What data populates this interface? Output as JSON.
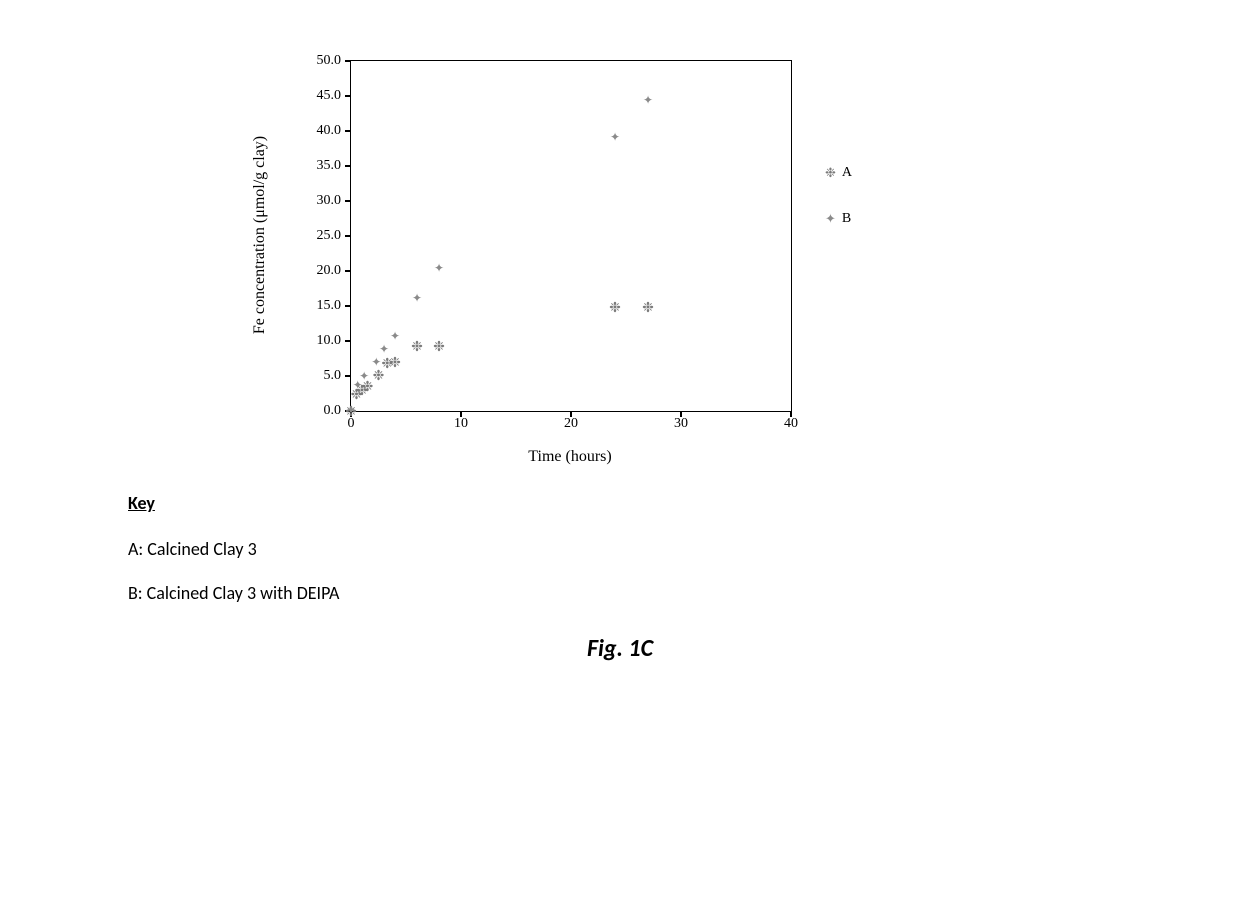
{
  "chart": {
    "type": "scatter",
    "xlabel": "Time (hours)",
    "ylabel": "Fe concentration (μmol/g clay)",
    "label_fontsize": 16,
    "tick_fontsize": 14,
    "xlim": [
      0,
      40
    ],
    "ylim": [
      0,
      50
    ],
    "xtick_step": 10,
    "ytick_step": 5,
    "xticks": [
      0,
      10,
      20,
      30,
      40
    ],
    "yticks": [
      0.0,
      5.0,
      10.0,
      15.0,
      20.0,
      25.0,
      30.0,
      35.0,
      40.0,
      45.0,
      50.0
    ],
    "ytick_labels": [
      "0.0",
      "5.0",
      "10.0",
      "15.0",
      "20.0",
      "25.0",
      "30.0",
      "35.0",
      "40.0",
      "45.0",
      "50.0"
    ],
    "background_color": "#ffffff",
    "axis_color": "#000000",
    "series": {
      "A": {
        "label": "A",
        "marker_glyph": "❉",
        "marker_color": "#7a7a7a",
        "marker_size": 14,
        "points": [
          {
            "x": 0.0,
            "y": 0.0
          },
          {
            "x": 0.5,
            "y": 2.4
          },
          {
            "x": 1.0,
            "y": 3.0
          },
          {
            "x": 1.5,
            "y": 3.6
          },
          {
            "x": 2.5,
            "y": 5.2
          },
          {
            "x": 3.3,
            "y": 6.8
          },
          {
            "x": 4.0,
            "y": 7.0
          },
          {
            "x": 6.0,
            "y": 9.3
          },
          {
            "x": 8.0,
            "y": 9.3
          },
          {
            "x": 24.0,
            "y": 14.8
          },
          {
            "x": 27.0,
            "y": 14.8
          }
        ]
      },
      "B": {
        "label": "B",
        "marker_glyph": "✦",
        "marker_color": "#8a8a8a",
        "marker_size": 12,
        "points": [
          {
            "x": 0.0,
            "y": 0.2
          },
          {
            "x": 0.6,
            "y": 3.7
          },
          {
            "x": 1.2,
            "y": 5.0
          },
          {
            "x": 2.3,
            "y": 7.0
          },
          {
            "x": 3.0,
            "y": 8.8
          },
          {
            "x": 4.0,
            "y": 10.7
          },
          {
            "x": 6.0,
            "y": 16.1
          },
          {
            "x": 8.0,
            "y": 20.5
          },
          {
            "x": 24.0,
            "y": 39.2
          },
          {
            "x": 27.0,
            "y": 44.4
          }
        ]
      }
    },
    "legend": {
      "position": "right",
      "entries": [
        {
          "series": "A",
          "label": "A"
        },
        {
          "series": "B",
          "label": "B"
        }
      ]
    }
  },
  "key": {
    "title": "Key",
    "lines": [
      "A: Calcined Clay 3",
      "B: Calcined Clay 3 with DEIPA"
    ]
  },
  "figure_caption": "Fig. 1C"
}
